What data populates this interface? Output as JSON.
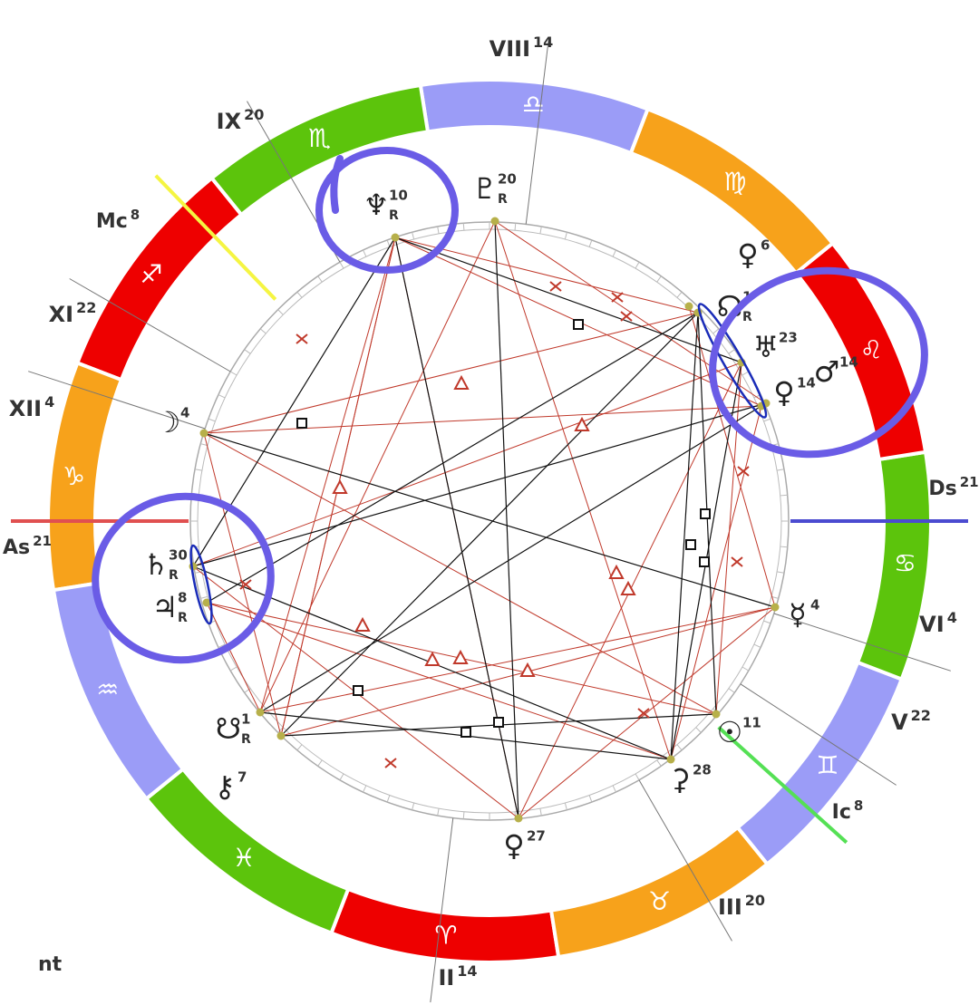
{
  "zodiac": [
    {
      "glyph": "♈",
      "color": "#ee0000"
    },
    {
      "glyph": "♉",
      "color": "#f7a21b"
    },
    {
      "glyph": "♊",
      "color": "#9b9cf7"
    },
    {
      "glyph": "♋",
      "color": "#5cc40c"
    },
    {
      "glyph": "♌",
      "color": "#ee0000"
    },
    {
      "glyph": "♍",
      "color": "#f7a21b"
    },
    {
      "glyph": "♎",
      "color": "#9b9cf7"
    },
    {
      "glyph": "♏",
      "color": "#5cc40c"
    },
    {
      "glyph": "♐",
      "color": "#ee0000"
    },
    {
      "glyph": "♑",
      "color": "#f7a21b"
    },
    {
      "glyph": "♒",
      "color": "#9b9cf7"
    },
    {
      "glyph": "♓",
      "color": "#5cc40c"
    }
  ],
  "houses": [
    {
      "label": "VIII",
      "degree": 14
    },
    {
      "label": "IX",
      "degree": 20
    },
    {
      "label": "XI",
      "degree": 22
    },
    {
      "label": "XII",
      "degree": 4
    },
    {
      "label": "VI",
      "degree": 4
    },
    {
      "label": "V",
      "degree": 22
    },
    {
      "label": "III",
      "degree": 20
    },
    {
      "label": "II",
      "degree": 14
    }
  ],
  "angles": [
    {
      "label": "Mc",
      "degree": 8
    },
    {
      "label": "As",
      "degree": 21
    },
    {
      "label": "Ds",
      "degree": 21
    },
    {
      "label": "Ic",
      "degree": 8
    }
  ],
  "planets": [
    {
      "glyph": "♆",
      "degree": 10,
      "retro": "R"
    },
    {
      "glyph": "♇",
      "degree": 20,
      "retro": "R"
    },
    {
      "glyph": "♀",
      "degree": 6
    },
    {
      "glyph": "☊",
      "degree": 1,
      "retro": "R"
    },
    {
      "glyph": "♅",
      "degree": 23
    },
    {
      "glyph": "♀",
      "degree": 14
    },
    {
      "glyph": "♂",
      "degree": 14
    },
    {
      "glyph": "☽",
      "degree": 4
    },
    {
      "glyph": "♄",
      "degree": 30,
      "retro": "R"
    },
    {
      "glyph": "♃",
      "degree": 8,
      "retro": "R"
    },
    {
      "glyph": "☿",
      "degree": 4
    },
    {
      "glyph": "☉",
      "degree": 11
    },
    {
      "glyph": "⚳",
      "degree": 28
    },
    {
      "glyph": "♀",
      "degree": 27
    },
    {
      "glyph": "☋",
      "degree": 1,
      "retro": "R"
    },
    {
      "glyph": "⚷",
      "degree": 7
    }
  ],
  "footer": "nt"
}
